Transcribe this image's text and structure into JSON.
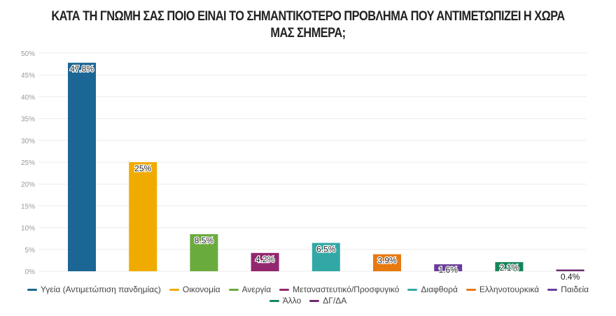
{
  "chart_data": {
    "type": "bar",
    "title": "ΚΑΤΑ ΤΗ ΓΝΩΜΗ ΣΑΣ ΠΟΙΟ ΕΙΝΑΙ ΤΟ ΣΗΜΑΝΤΙΚΟΤΕΡΟ ΠΡΟΒΛΗΜΑ ΠΟΥ ΑΝΤΙΜΕΤΩΠΙΖΕΙ Η ΧΩΡΑ ΜΑΣ ΣΗΜΕΡΑ;",
    "xlabel": "",
    "ylabel": "",
    "ylim": [
      0,
      50
    ],
    "yticks": [
      0,
      5,
      10,
      15,
      20,
      25,
      30,
      35,
      40,
      45,
      50
    ],
    "ytick_labels": [
      "0%",
      "5%",
      "10%",
      "15%",
      "20%",
      "25%",
      "30%",
      "35%",
      "40%",
      "45%",
      "50%"
    ],
    "grid": true,
    "legend_position": "bottom",
    "categories": [
      "Υγεία (Αντιμετώπιση πανδημίας)",
      "Οικονομία",
      "Ανεργία",
      "Μεταναστευτικό/Προσφυγικό",
      "Διαφθορά",
      "Ελληνοτουρκικά",
      "Παιδεία",
      "Άλλο",
      "ΔΓ/ΔΑ"
    ],
    "values": [
      47.8,
      25,
      8.5,
      4.2,
      6.5,
      3.9,
      1.6,
      2.1,
      0.4
    ],
    "data_labels": [
      "47.8%",
      "25%",
      "8.5%",
      "4.2%",
      "6.5%",
      "3.9%",
      "1.6%",
      "2.1%",
      "0.4%"
    ],
    "colors": [
      "#1b6694",
      "#f0ab00",
      "#6aab3e",
      "#93276f",
      "#32a8a6",
      "#e8790f",
      "#6a3d9a",
      "#14865a",
      "#6e2c6e"
    ]
  }
}
